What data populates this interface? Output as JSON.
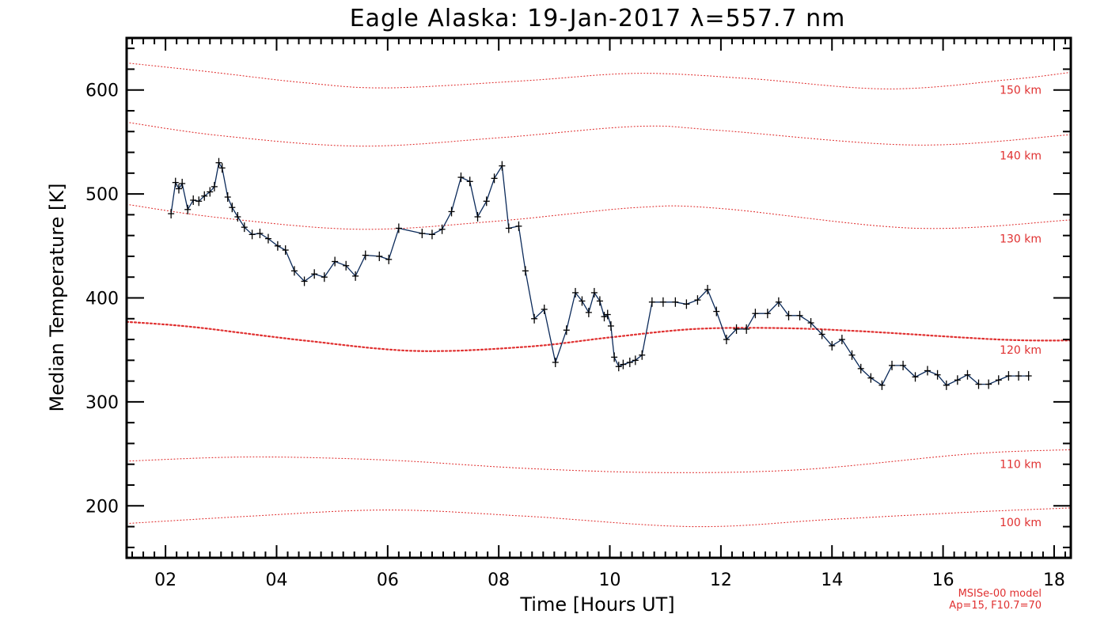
{
  "chart_data": {
    "type": "line",
    "title": "Eagle Alaska: 19-Jan-2017 λ=557.7 nm",
    "xlabel": "Time [Hours UT]",
    "ylabel": "Median Temperature [K]",
    "xlim": [
      1.3,
      18.3
    ],
    "ylim": [
      150,
      650
    ],
    "x_ticks": [
      2,
      4,
      6,
      8,
      10,
      12,
      14,
      16,
      18
    ],
    "x_tick_labels": [
      "02",
      "04",
      "06",
      "08",
      "10",
      "12",
      "14",
      "16",
      "18"
    ],
    "y_ticks": [
      200,
      300,
      400,
      500,
      600
    ],
    "y_tick_labels": [
      "200",
      "300",
      "400",
      "500",
      "600"
    ],
    "grid": false,
    "series": [
      {
        "color": "#0b2a5a",
        "marker": "plus",
        "x": [
          2.1,
          2.18,
          2.24,
          2.3,
          2.4,
          2.5,
          2.6,
          2.7,
          2.8,
          2.88,
          2.96,
          3.02,
          3.12,
          3.2,
          3.3,
          3.42,
          3.56,
          3.7,
          3.85,
          4.02,
          4.16,
          4.32,
          4.5,
          4.68,
          4.86,
          5.05,
          5.25,
          5.42,
          5.6,
          5.85,
          6.02,
          6.2,
          6.62,
          6.8,
          6.98,
          7.15,
          7.32,
          7.48,
          7.62,
          7.78,
          7.92,
          8.06,
          8.18,
          8.36,
          8.48,
          8.64,
          8.82,
          9.02,
          9.22,
          9.38,
          9.5,
          9.62,
          9.72,
          9.82,
          9.9,
          9.96,
          10.02,
          10.08,
          10.16,
          10.24,
          10.36,
          10.46,
          10.58,
          10.76,
          10.96,
          11.18,
          11.38,
          11.58,
          11.76,
          11.92,
          12.1,
          12.28,
          12.46,
          12.62,
          12.84,
          13.04,
          13.22,
          13.42,
          13.62,
          13.82,
          14.0,
          14.18,
          14.36,
          14.52,
          14.7,
          14.9,
          15.08,
          15.28,
          15.5,
          15.72,
          15.9,
          16.06,
          16.26,
          16.44,
          16.64,
          16.82,
          17.0,
          17.18,
          17.36,
          17.54
        ],
        "y": [
          481,
          511,
          505,
          510,
          485,
          494,
          493,
          498,
          502,
          507,
          530,
          525,
          497,
          487,
          478,
          468,
          461,
          462,
          457,
          450,
          446,
          426,
          416,
          423,
          420,
          435,
          431,
          421,
          441,
          440,
          437,
          467,
          462,
          461,
          466,
          483,
          516,
          512,
          478,
          493,
          515,
          527,
          467,
          469,
          426,
          380,
          389,
          338,
          369,
          405,
          397,
          386,
          405,
          397,
          382,
          384,
          373,
          343,
          334,
          336,
          338,
          340,
          345,
          396,
          396,
          396,
          394,
          398,
          408,
          387,
          360,
          370,
          370,
          385,
          385,
          396,
          383,
          383,
          376,
          365,
          354,
          360,
          345,
          332,
          323,
          316,
          335,
          335,
          324,
          330,
          326,
          316,
          321,
          326,
          317,
          317,
          321,
          325,
          325,
          325
        ]
      }
    ],
    "model_curves": [
      {
        "name": "150 km",
        "x": [
          1.3,
          2.7,
          4.5,
          6.0,
          8.5,
          10.5,
          12.5,
          15.0,
          17.2,
          18.3
        ],
        "y": [
          626,
          618,
          607,
          602,
          609,
          616,
          611,
          601,
          610,
          617
        ]
      },
      {
        "name": "140 km",
        "x": [
          1.3,
          3.0,
          5.5,
          8.0,
          10.5,
          12.0,
          15.5,
          18.3
        ],
        "y": [
          569,
          556,
          546,
          554,
          565,
          561,
          547,
          557
        ]
      },
      {
        "name": "130 km",
        "x": [
          1.3,
          3.0,
          5.5,
          8.0,
          10.5,
          12.0,
          15.5,
          18.3
        ],
        "y": [
          490,
          477,
          466,
          474,
          487,
          486,
          467,
          475
        ]
      },
      {
        "name": "120 km",
        "x": [
          1.3,
          2.5,
          4.5,
          6.5,
          8.5,
          10.0,
          11.5,
          13.0,
          14.5,
          17.0,
          18.3
        ],
        "y": [
          377,
          372,
          359,
          349,
          353,
          362,
          370,
          371,
          368,
          360,
          359
        ]
      },
      {
        "name": "110 km",
        "x": [
          1.3,
          3.5,
          6.0,
          8.5,
          11.0,
          13.5,
          16.5,
          18.3
        ],
        "y": [
          243,
          247,
          244,
          236,
          232,
          235,
          250,
          254
        ]
      },
      {
        "name": "100 km",
        "x": [
          1.3,
          3.5,
          6.0,
          8.5,
          11.5,
          14.0,
          16.5,
          18.3
        ],
        "y": [
          183,
          190,
          196,
          190,
          180,
          187,
          194,
          198
        ]
      }
    ],
    "model_note": [
      "MSISe-00 model",
      "Ap=15, F10.7=70"
    ]
  },
  "colors": {
    "data_line": "#0b2a5a",
    "model_curve": "#e03030",
    "axis": "#000000"
  }
}
